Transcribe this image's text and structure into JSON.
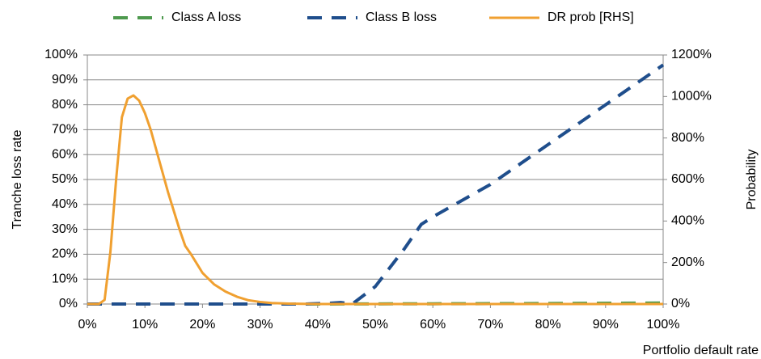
{
  "chart_data": {
    "type": "line",
    "x_label": "Portfolio default rate",
    "y_label": "Tranche loss rate",
    "y2_label": "Probability",
    "xlim": [
      0,
      100
    ],
    "xticks": [
      {
        "value": 0,
        "label": "0%"
      },
      {
        "value": 10,
        "label": "10%"
      },
      {
        "value": 20,
        "label": "20%"
      },
      {
        "value": 30,
        "label": "30%"
      },
      {
        "value": 40,
        "label": "40%"
      },
      {
        "value": 50,
        "label": "50%"
      },
      {
        "value": 60,
        "label": "60%"
      },
      {
        "value": 70,
        "label": "70%"
      },
      {
        "value": 80,
        "label": "80%"
      },
      {
        "value": 90,
        "label": "90%"
      },
      {
        "value": 100,
        "label": "100%"
      }
    ],
    "ylim": [
      0,
      100
    ],
    "yticks": [
      {
        "value": 0,
        "label": "0%"
      },
      {
        "value": 10,
        "label": "10%"
      },
      {
        "value": 20,
        "label": "20%"
      },
      {
        "value": 30,
        "label": "30%"
      },
      {
        "value": 40,
        "label": "40%"
      },
      {
        "value": 50,
        "label": "50%"
      },
      {
        "value": 60,
        "label": "60%"
      },
      {
        "value": 70,
        "label": "70%"
      },
      {
        "value": 80,
        "label": "80%"
      },
      {
        "value": 90,
        "label": "90%"
      },
      {
        "value": 100,
        "label": "100%"
      }
    ],
    "y2lim": [
      0,
      1200
    ],
    "y2ticks": [
      {
        "value": 0,
        "label": "0%"
      },
      {
        "value": 200,
        "label": "200%"
      },
      {
        "value": 400,
        "label": "400%"
      },
      {
        "value": 600,
        "label": "600%"
      },
      {
        "value": 800,
        "label": "800%"
      },
      {
        "value": 1000,
        "label": "1000%"
      },
      {
        "value": 1200,
        "label": "1200%"
      }
    ],
    "grid": true,
    "legend": "top",
    "series": [
      {
        "name": "Class A loss",
        "color": "#4e9a4e",
        "line_style": "dashed",
        "x": [
          0,
          20,
          40,
          60,
          80,
          100
        ],
        "values": [
          0,
          0,
          0,
          0.1,
          0.2,
          0.4
        ]
      },
      {
        "name": "Class B loss",
        "color": "#1f4e8c",
        "line_style": "dashed",
        "x": [
          0,
          38,
          42,
          44,
          46,
          50,
          55,
          58,
          60,
          70,
          80,
          90,
          100
        ],
        "values": [
          0,
          0,
          0.3,
          0.6,
          0,
          7,
          22,
          32,
          35,
          48,
          64,
          80,
          96
        ]
      },
      {
        "name": "DR prob [RHS]",
        "color": "#f0a030",
        "line_style": "solid",
        "axis": "y2",
        "x": [
          0,
          2,
          3,
          4,
          5,
          6,
          7,
          8,
          9,
          10,
          11,
          12,
          13,
          14,
          15,
          16,
          17,
          18,
          19,
          20,
          22,
          24,
          26,
          28,
          30,
          32,
          35,
          40,
          100
        ],
        "values": [
          0,
          0,
          20,
          250,
          600,
          900,
          990,
          1005,
          980,
          920,
          840,
          740,
          640,
          540,
          450,
          360,
          280,
          240,
          195,
          150,
          95,
          60,
          35,
          18,
          10,
          5,
          2,
          0,
          0
        ]
      }
    ]
  }
}
